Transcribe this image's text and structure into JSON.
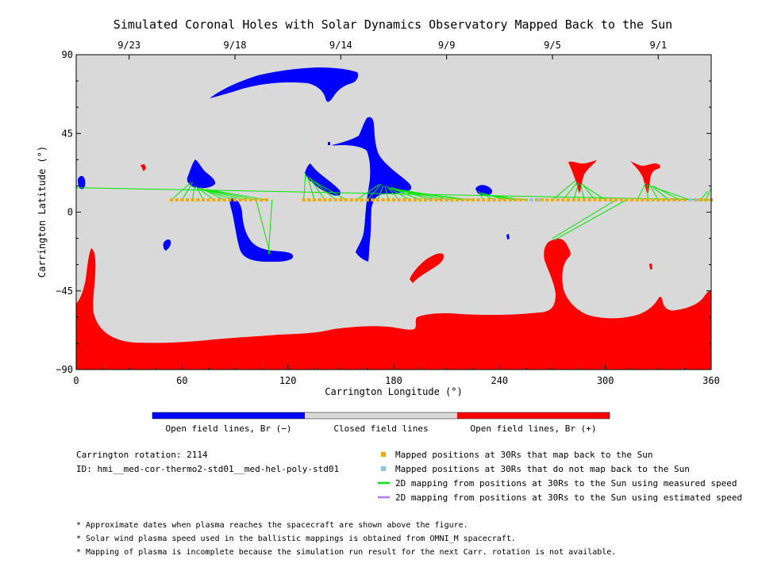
{
  "chart_data": {
    "type": "map",
    "title": "Simulated Coronal Holes with Solar Dynamics Observatory Mapped Back to the Sun",
    "xlabel": "Carrington Longitude (°)",
    "ylabel": "Carrington Latitude (°)",
    "xlim": [
      0,
      360
    ],
    "ylim": [
      -90,
      90
    ],
    "xticks": [
      "0",
      "60",
      "120",
      "180",
      "240",
      "300",
      "360"
    ],
    "yticks": [
      "90",
      "45",
      "0",
      "−45",
      "−90"
    ],
    "date_ticks": [
      {
        "lon": 30,
        "label": "9/23"
      },
      {
        "lon": 90,
        "label": "9/18"
      },
      {
        "lon": 150,
        "label": "9/14"
      },
      {
        "lon": 210,
        "label": "9/9"
      },
      {
        "lon": 270,
        "label": "9/5"
      },
      {
        "lon": 330,
        "label": "9/1"
      }
    ],
    "colorbar": [
      {
        "label": "Open field lines, Br (−)",
        "color": "#0000ff"
      },
      {
        "label": "Closed field lines",
        "color": "#d9d9d9"
      },
      {
        "label": "Open field lines, Br (+)",
        "color": "#ff0000"
      }
    ],
    "mapped_positions_lat": 7,
    "mapped_positions_lon_orange": [
      54,
      57,
      60,
      63,
      66,
      69,
      72,
      75,
      78,
      81,
      84,
      87,
      90,
      93,
      96,
      99,
      102,
      105,
      108,
      129,
      132,
      135,
      138,
      141,
      144,
      147,
      150,
      153,
      156,
      159,
      162,
      165,
      168,
      171,
      174,
      177,
      180,
      183,
      186,
      189,
      192,
      195,
      198,
      201,
      204,
      207,
      210,
      213,
      216,
      219,
      222,
      225,
      228,
      231,
      234,
      237,
      240,
      243,
      246,
      249,
      252,
      255,
      258,
      261,
      264,
      267,
      270,
      273,
      276,
      279,
      282,
      285,
      288,
      291,
      294,
      297,
      300,
      303,
      306,
      309,
      312,
      315,
      318,
      321,
      324,
      327,
      330,
      333,
      336,
      339,
      342,
      345,
      348,
      351,
      354,
      357,
      360
    ],
    "mapped_positions_lon_blue": [
      258,
      262,
      348,
      352
    ],
    "field_line_mappings": [
      {
        "from": [
          54,
          7
        ],
        "to": [
          65,
          17
        ]
      },
      {
        "from": [
          60,
          7
        ],
        "to": [
          66,
          17
        ]
      },
      {
        "from": [
          66,
          7
        ],
        "to": [
          67,
          15
        ]
      },
      {
        "from": [
          72,
          7
        ],
        "to": [
          68,
          15
        ]
      },
      {
        "from": [
          78,
          7
        ],
        "to": [
          69,
          14
        ]
      },
      {
        "from": [
          84,
          7
        ],
        "to": [
          70,
          14
        ]
      },
      {
        "from": [
          90,
          7
        ],
        "to": [
          71,
          13
        ]
      },
      {
        "from": [
          96,
          7
        ],
        "to": [
          72,
          13
        ]
      },
      {
        "from": [
          102,
          7
        ],
        "to": [
          73,
          13
        ]
      },
      {
        "from": [
          108,
          7
        ],
        "to": [
          74,
          13
        ]
      },
      {
        "from": [
          111,
          7
        ],
        "to": [
          109,
          -24
        ]
      },
      {
        "from": [
          102,
          7
        ],
        "to": [
          110,
          -24
        ]
      },
      {
        "from": [
          129,
          7
        ],
        "to": [
          130,
          22
        ]
      },
      {
        "from": [
          135,
          7
        ],
        "to": [
          131,
          21
        ]
      },
      {
        "from": [
          141,
          7
        ],
        "to": [
          132,
          20
        ]
      },
      {
        "from": [
          147,
          7
        ],
        "to": [
          133,
          19
        ]
      },
      {
        "from": [
          153,
          7
        ],
        "to": [
          134,
          18
        ]
      },
      {
        "from": [
          159,
          7
        ],
        "to": [
          172,
          16
        ]
      },
      {
        "from": [
          165,
          7
        ],
        "to": [
          173,
          16
        ]
      },
      {
        "from": [
          171,
          7
        ],
        "to": [
          174,
          15
        ]
      },
      {
        "from": [
          177,
          7
        ],
        "to": [
          175,
          15
        ]
      },
      {
        "from": [
          183,
          7
        ],
        "to": [
          176,
          15
        ]
      },
      {
        "from": [
          189,
          7
        ],
        "to": [
          177,
          14
        ]
      },
      {
        "from": [
          195,
          7
        ],
        "to": [
          178,
          14
        ]
      },
      {
        "from": [
          201,
          7
        ],
        "to": [
          179,
          14
        ]
      },
      {
        "from": [
          207,
          7
        ],
        "to": [
          180,
          13
        ]
      },
      {
        "from": [
          213,
          7
        ],
        "to": [
          181,
          13
        ]
      },
      {
        "from": [
          219,
          7
        ],
        "to": [
          182,
          13
        ]
      },
      {
        "from": [
          225,
          7
        ],
        "to": [
          183,
          12
        ]
      },
      {
        "from": [
          231,
          7
        ],
        "to": [
          228,
          12
        ]
      },
      {
        "from": [
          237,
          7
        ],
        "to": [
          229,
          11
        ]
      },
      {
        "from": [
          243,
          7
        ],
        "to": [
          230,
          11
        ]
      },
      {
        "from": [
          249,
          7
        ],
        "to": [
          231,
          10
        ]
      },
      {
        "from": [
          255,
          7
        ],
        "to": [
          232,
          10
        ]
      },
      {
        "from": [
          270,
          7
        ],
        "to": [
          283,
          18
        ]
      },
      {
        "from": [
          276,
          7
        ],
        "to": [
          284,
          17
        ]
      },
      {
        "from": [
          282,
          7
        ],
        "to": [
          285,
          17
        ]
      },
      {
        "from": [
          288,
          7
        ],
        "to": [
          286,
          16
        ]
      },
      {
        "from": [
          294,
          7
        ],
        "to": [
          287,
          16
        ]
      },
      {
        "from": [
          300,
          7
        ],
        "to": [
          288,
          15
        ]
      },
      {
        "from": [
          306,
          7
        ],
        "to": [
          270,
          -15
        ]
      },
      {
        "from": [
          312,
          7
        ],
        "to": [
          271,
          -16
        ]
      },
      {
        "from": [
          318,
          7
        ],
        "to": [
          323,
          17
        ]
      },
      {
        "from": [
          324,
          7
        ],
        "to": [
          324,
          16
        ]
      },
      {
        "from": [
          330,
          7
        ],
        "to": [
          325,
          16
        ]
      },
      {
        "from": [
          336,
          7
        ],
        "to": [
          326,
          15
        ]
      },
      {
        "from": [
          342,
          7
        ],
        "to": [
          327,
          15
        ]
      },
      {
        "from": [
          348,
          7
        ],
        "to": [
          328,
          14
        ]
      },
      {
        "from": [
          354,
          7
        ],
        "to": [
          358,
          12
        ]
      },
      {
        "from": [
          360,
          7
        ],
        "to": [
          0,
          14
        ]
      },
      {
        "from": [
          357,
          7
        ],
        "to": [
          360,
          14
        ]
      }
    ],
    "info": {
      "rotation": "Carrington rotation: 2114",
      "id": "ID: hmi__med-cor-thermo2-std01__med-hel-poly-std01"
    },
    "legend": [
      {
        "label": "Mapped positions at 30Rs that map back to the Sun",
        "color": "#f2a900",
        "kind": "square"
      },
      {
        "label": "Mapped positions at 30Rs that do not map back to the Sun",
        "color": "#87c3f0",
        "kind": "square"
      },
      {
        "label": "2D mapping from positions at 30Rs to the Sun using measured speed",
        "color": "#00e600",
        "kind": "line"
      },
      {
        "label": "2D mapping from positions at 30Rs to the Sun using estimated speed",
        "color": "#b57bea",
        "kind": "line"
      }
    ],
    "notes": [
      "* Approximate dates when plasma reaches the spacecraft are shown above the figure.",
      "* Solar wind plasma speed used in the ballistic mappings is obtained from OMNI_M spacecraft.",
      "* Mapping of plasma is incomplete because the simulation run result for the next Carr. rotation is not available."
    ]
  }
}
